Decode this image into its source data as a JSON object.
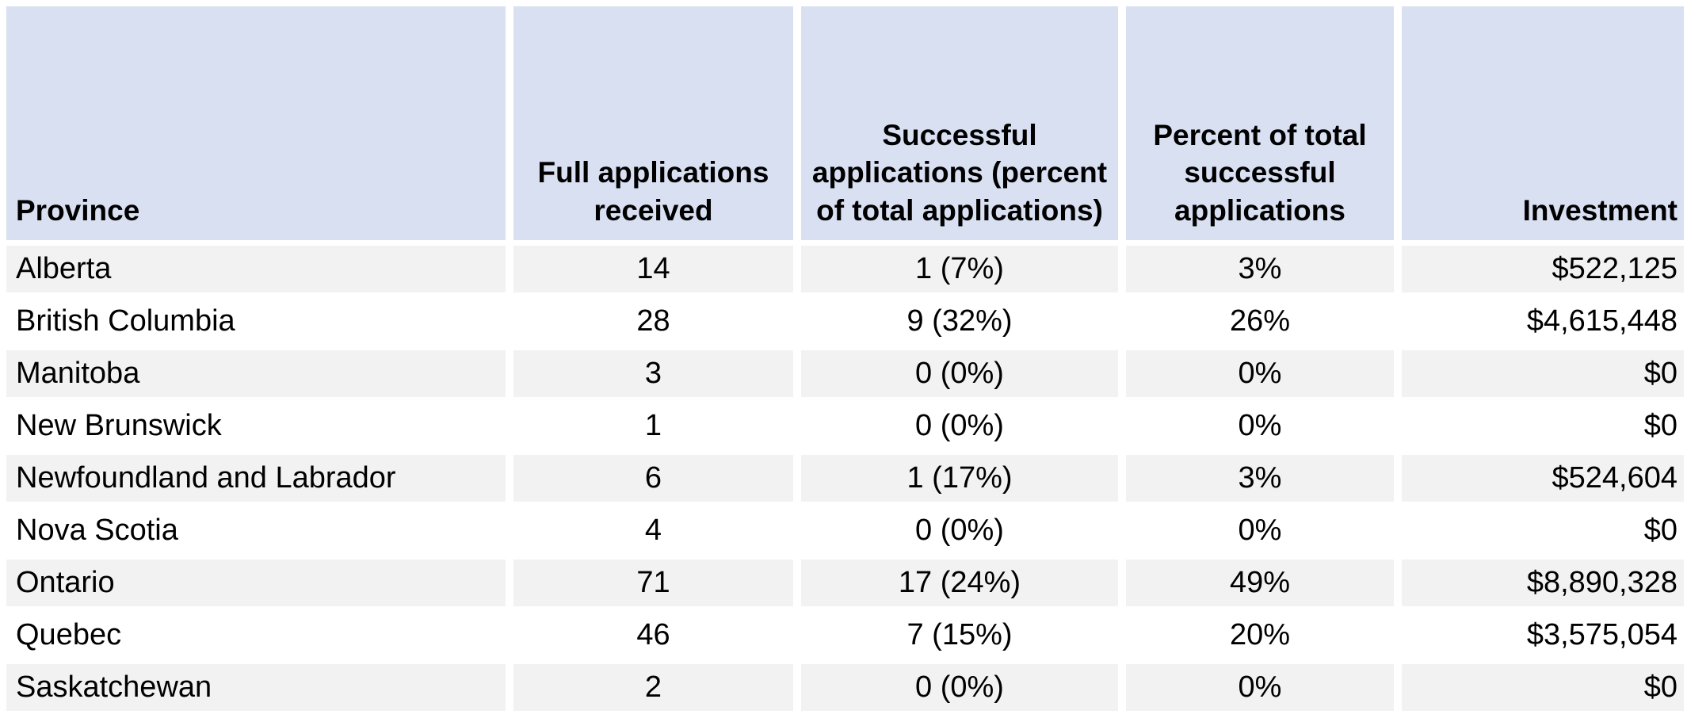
{
  "chart_data": {
    "type": "table",
    "columns": [
      {
        "key": "province",
        "label": "Province",
        "align": "left"
      },
      {
        "key": "full-applications-received",
        "label": "Full applications received",
        "align": "center"
      },
      {
        "key": "successful-applications",
        "label": "Successful applications (percent of total applications)",
        "align": "center"
      },
      {
        "key": "percent-of-total-successful",
        "label": "Percent of total successful applications",
        "align": "center"
      },
      {
        "key": "investment",
        "label": "Investment",
        "align": "right"
      }
    ],
    "rows": [
      {
        "cells": [
          "Alberta",
          "14",
          "1 (7%)",
          "3%",
          "$522,125"
        ]
      },
      {
        "cells": [
          "British Columbia",
          "28",
          "9 (32%)",
          "26%",
          "$4,615,448"
        ]
      },
      {
        "cells": [
          "Manitoba",
          "3",
          "0 (0%)",
          "0%",
          "$0"
        ]
      },
      {
        "cells": [
          "New Brunswick",
          "1",
          "0 (0%)",
          "0%",
          "$0"
        ]
      },
      {
        "cells": [
          "Newfoundland and Labrador",
          "6",
          "1 (17%)",
          "3%",
          "$524,604"
        ]
      },
      {
        "cells": [
          "Nova Scotia",
          "4",
          "0 (0%)",
          "0%",
          "$0"
        ]
      },
      {
        "cells": [
          "Ontario",
          "71",
          "17 (24%)",
          "49%",
          "$8,890,328"
        ]
      },
      {
        "cells": [
          "Quebec",
          "46",
          "7 (15%)",
          "20%",
          "$3,575,054"
        ]
      },
      {
        "cells": [
          "Saskatchewan",
          "2",
          "0 (0%)",
          "0%",
          "$0"
        ]
      }
    ],
    "layout": {
      "header_text_valign": "bottom",
      "striped": true,
      "first_stripe_row_index": 0
    }
  },
  "colors": {
    "header_bg": "#d9e0f2",
    "row_alt_bg": "#f2f2f2",
    "row_bg": "#ffffff",
    "gutter": "#ffffff",
    "text": "#000000"
  }
}
